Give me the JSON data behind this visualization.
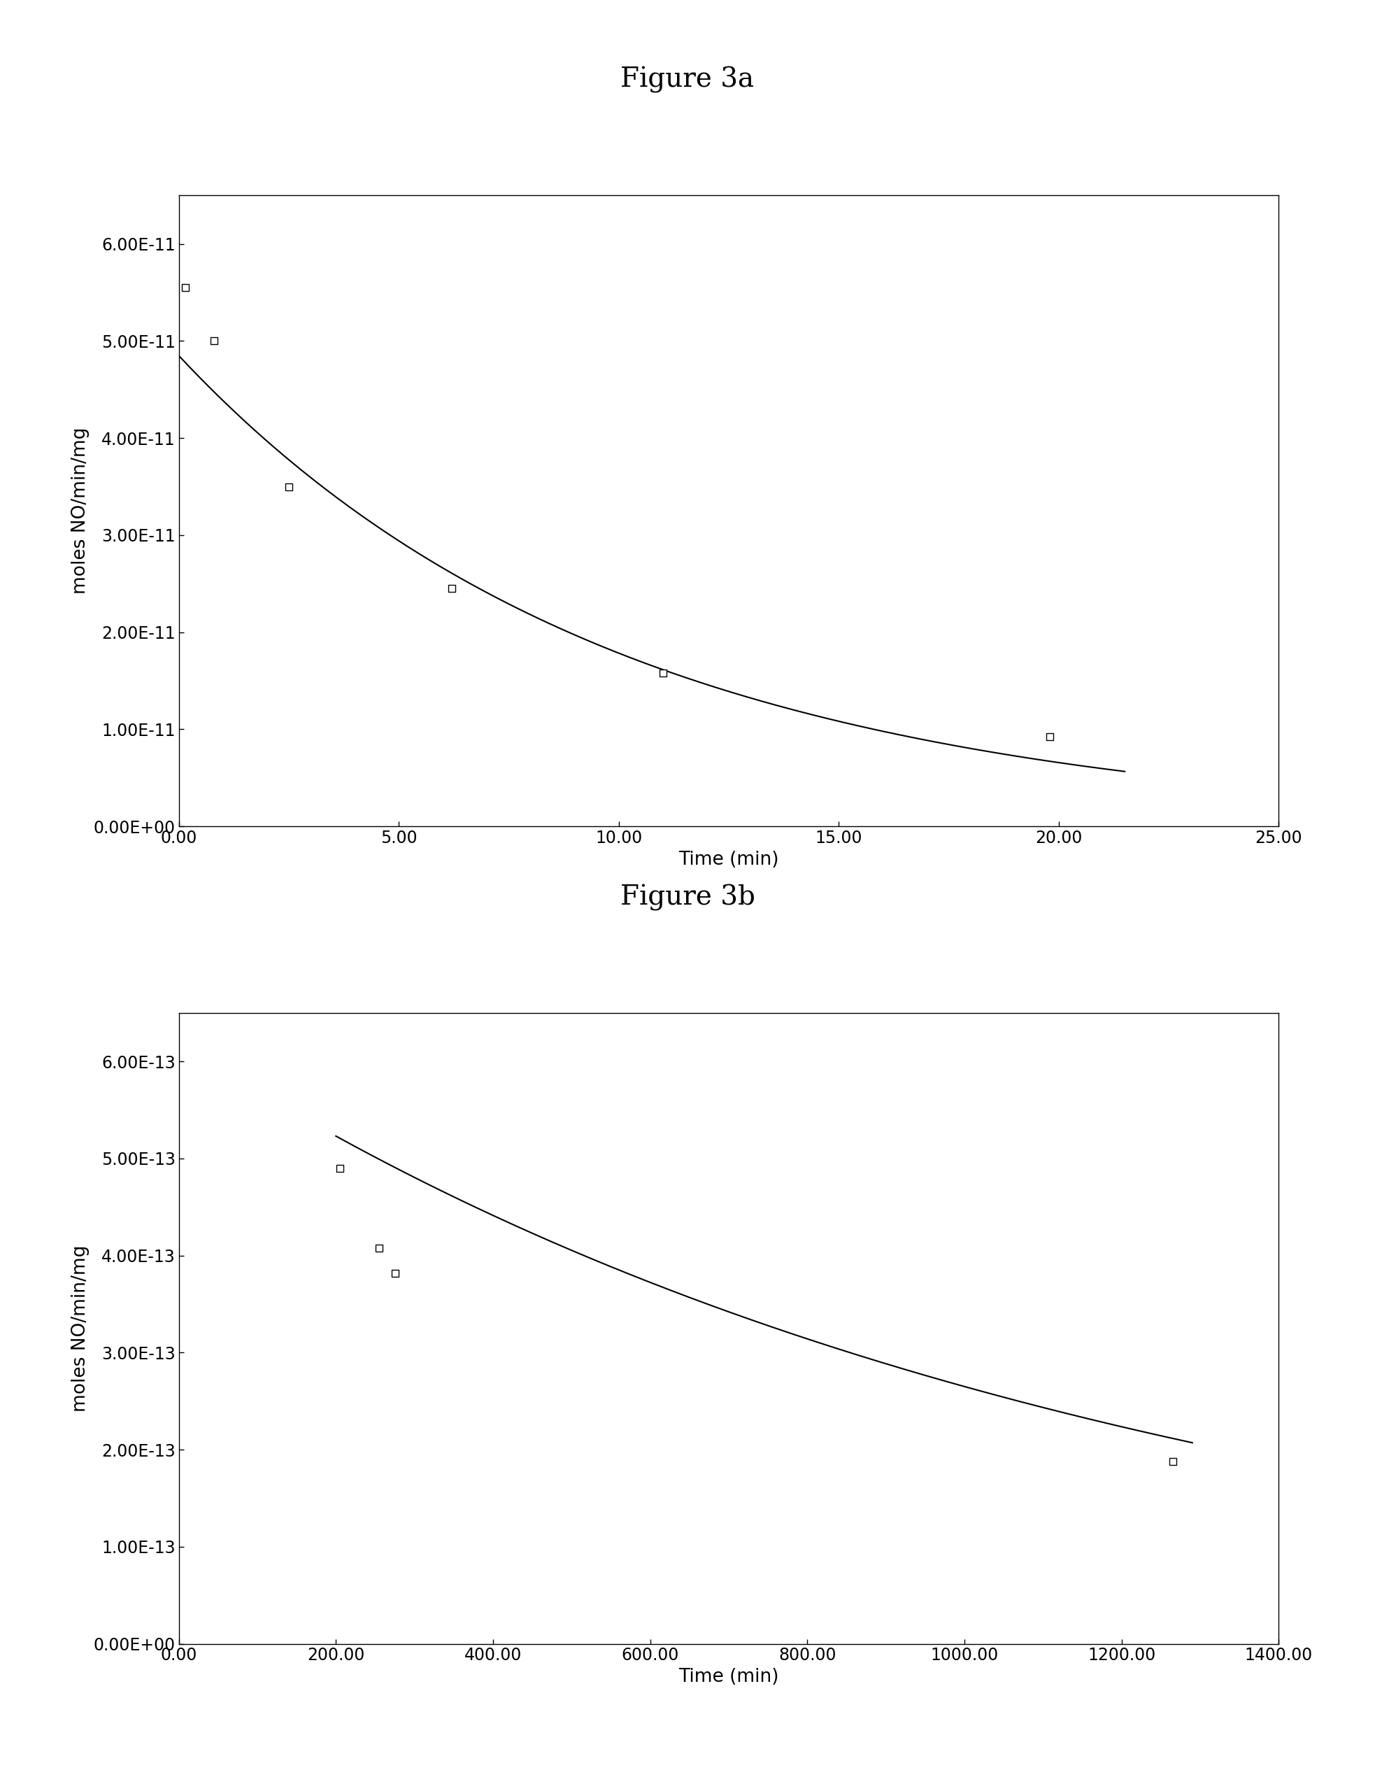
{
  "fig3a": {
    "title": "Figure 3a",
    "scatter_x": [
      0.15,
      0.8,
      2.5,
      6.2,
      11.0,
      19.8
    ],
    "scatter_y": [
      5.55e-11,
      5e-11,
      3.5e-11,
      2.45e-11,
      1.58e-11,
      9.2e-12
    ],
    "curve_start": 0.0,
    "curve_end": 21.5,
    "curve_a": 4.85e-11,
    "curve_b": 0.1,
    "xlabel": "Time (min)",
    "ylabel": "moles NO/min/mg",
    "xlim": [
      0,
      25
    ],
    "ylim": [
      0,
      6.5e-11
    ],
    "xticks": [
      0.0,
      5.0,
      10.0,
      15.0,
      20.0,
      25.0
    ],
    "xtick_labels": [
      "0.00",
      "5.00",
      "10.00",
      "15.00",
      "20.00",
      "25.00"
    ],
    "ytick_vals": [
      0.0,
      1e-11,
      2e-11,
      3e-11,
      4e-11,
      5e-11,
      6e-11
    ],
    "ytick_labels": [
      "0.00E+00",
      "1.00E-11",
      "2.00E-11",
      "3.00E-11",
      "4.00E-11",
      "5.00E-11",
      "6.00E-11"
    ]
  },
  "fig3b": {
    "title": "Figure 3b",
    "scatter_x": [
      205.0,
      255.0,
      275.0,
      1265.0
    ],
    "scatter_y": [
      4.9e-13,
      4.08e-13,
      3.82e-13,
      1.88e-13
    ],
    "curve_start": 200.0,
    "curve_end": 1290.0,
    "curve_a": 6.2e-13,
    "curve_b": 0.00085,
    "xlabel": "Time (min)",
    "ylabel": "moles NO/min/mg",
    "xlim": [
      0,
      1400
    ],
    "ylim": [
      0,
      6.5e-13
    ],
    "xticks": [
      0.0,
      200.0,
      400.0,
      600.0,
      800.0,
      1000.0,
      1200.0,
      1400.0
    ],
    "xtick_labels": [
      "0.00",
      "200.00",
      "400.00",
      "600.00",
      "800.00",
      "1000.00",
      "1200.00",
      "1400.00"
    ],
    "ytick_vals": [
      0.0,
      1e-13,
      2e-13,
      3e-13,
      4e-13,
      5e-13,
      6e-13
    ],
    "ytick_labels": [
      "0.00E+00",
      "1.00E-13",
      "2.00E-13",
      "3.00E-13",
      "4.00E-13",
      "5.00E-13",
      "6.00E-13"
    ]
  },
  "background_color": "#ffffff",
  "title_fontsize": 28,
  "label_fontsize": 19,
  "tick_fontsize": 17,
  "marker": "s",
  "marker_size": 60,
  "marker_color": "white",
  "marker_edge_color": "black",
  "line_color": "black",
  "line_width": 1.5
}
